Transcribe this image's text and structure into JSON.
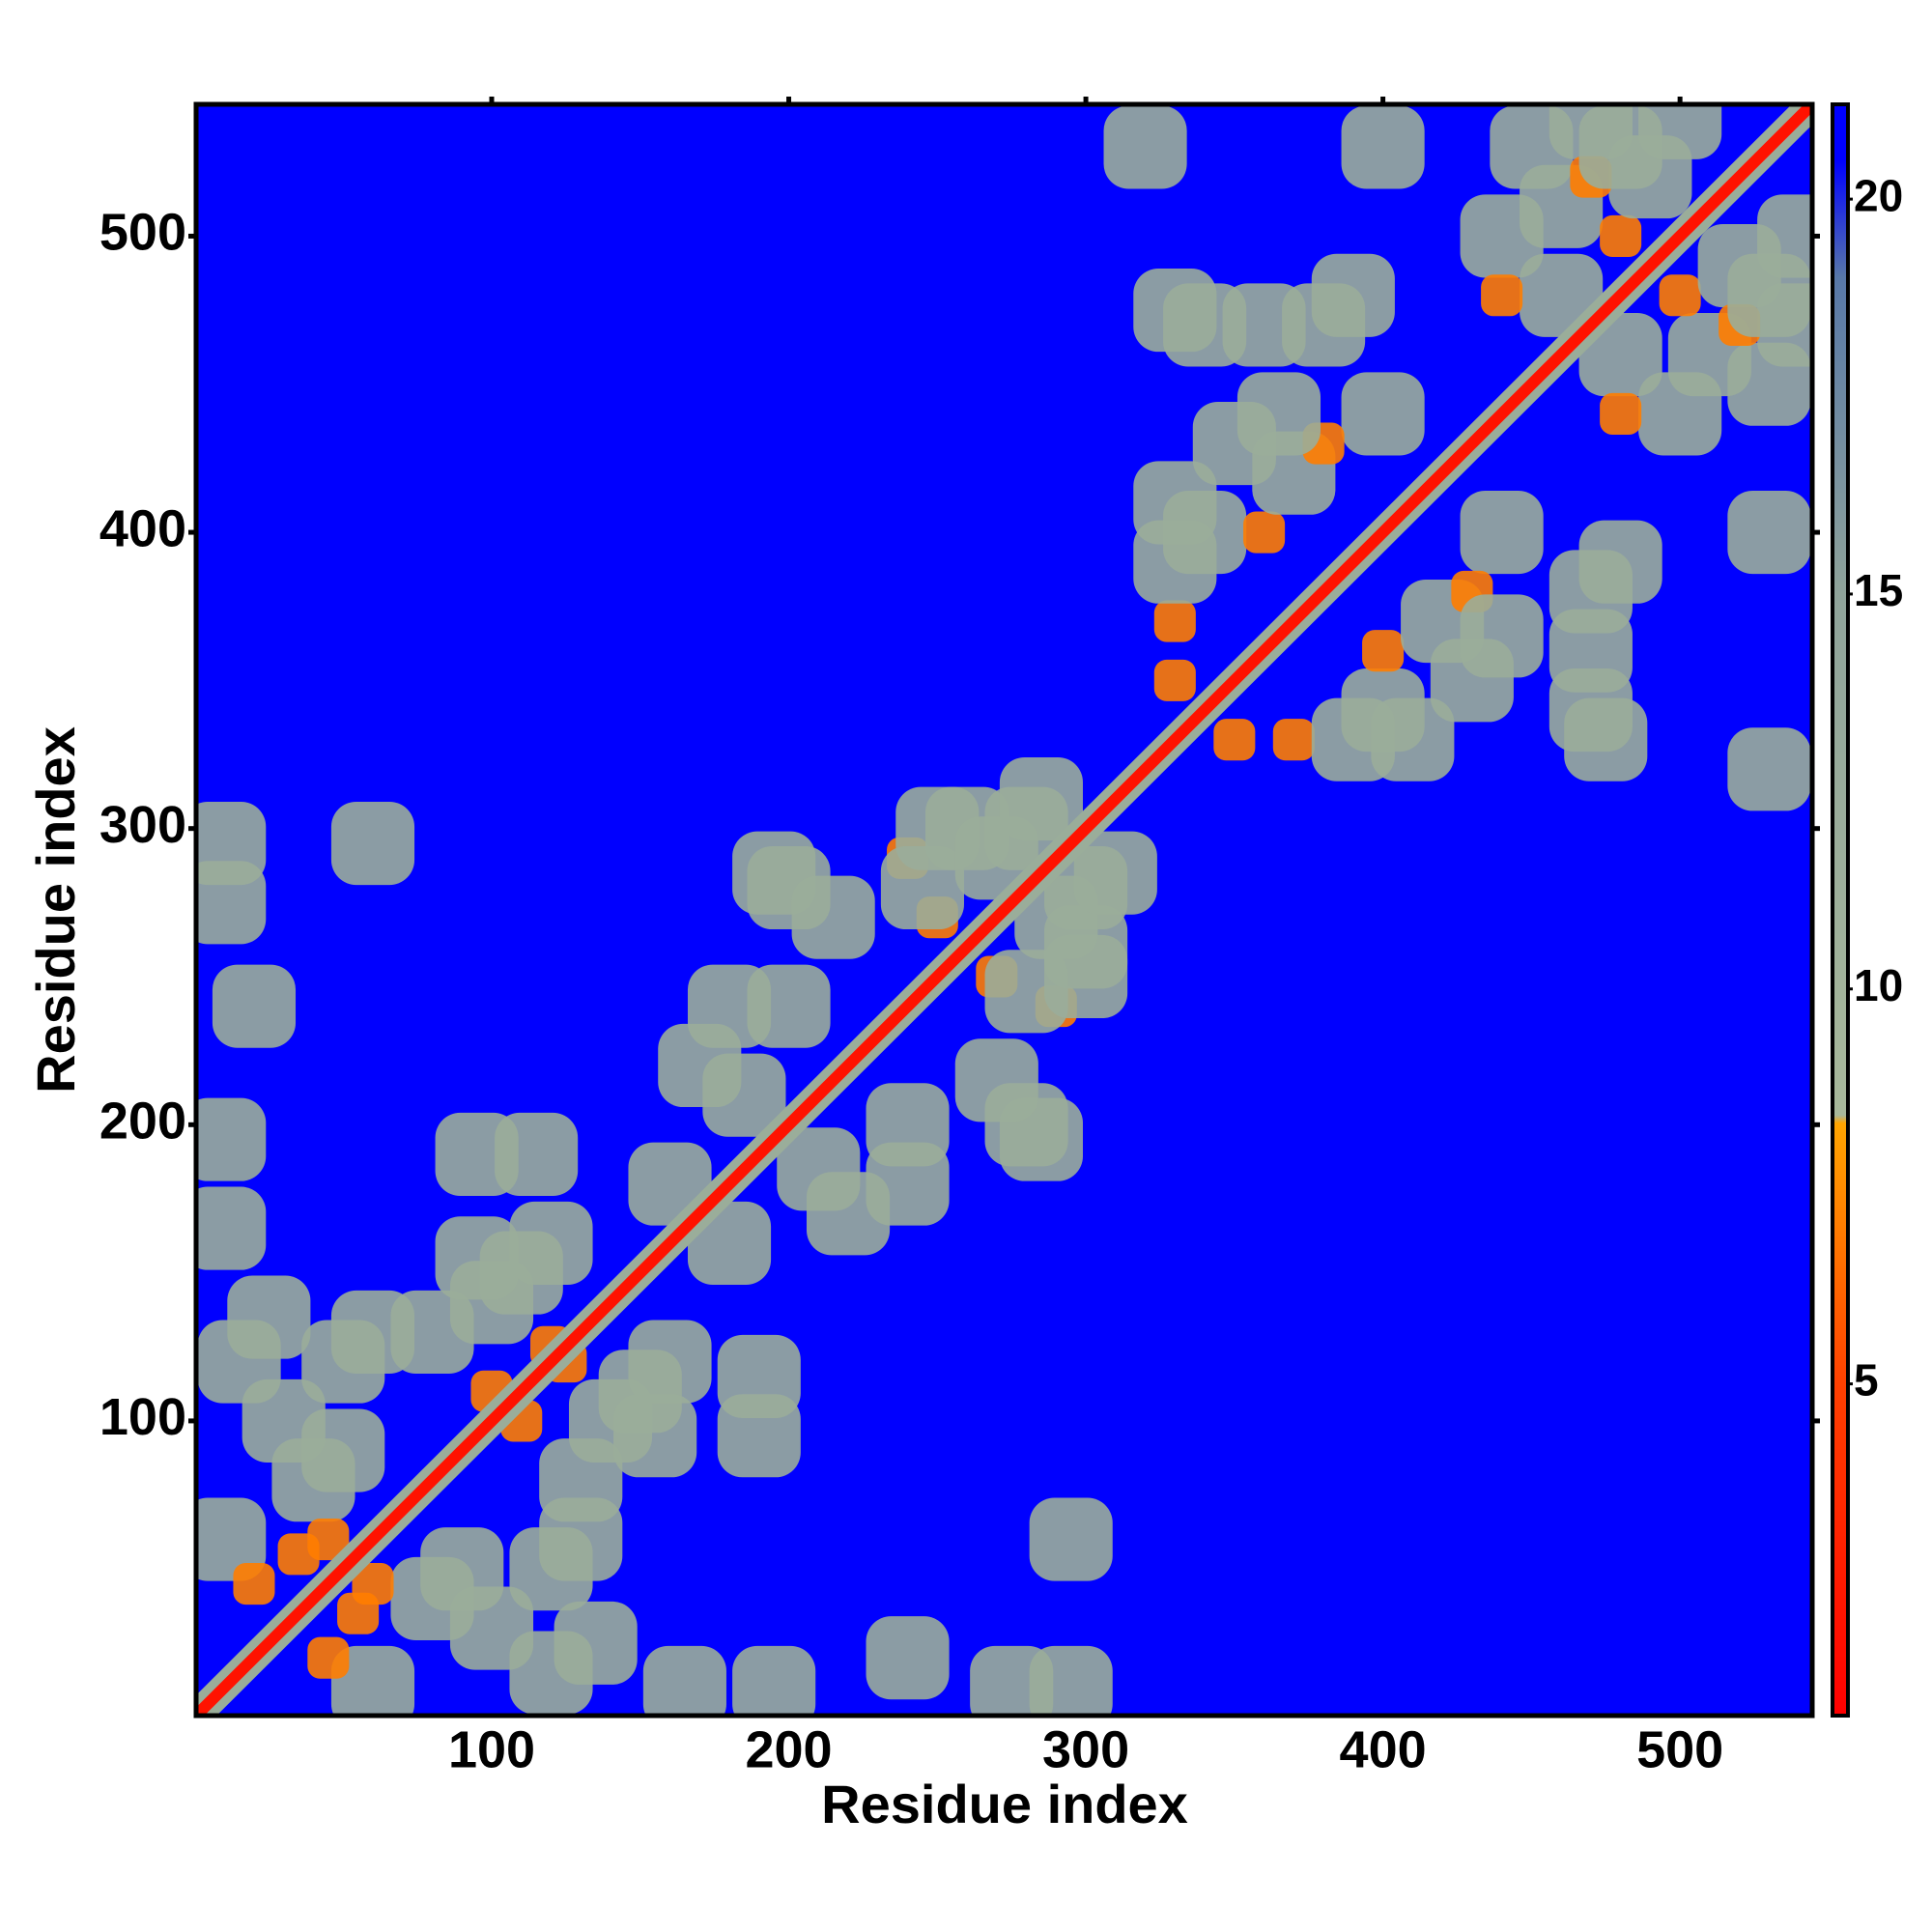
{
  "chart_data": {
    "type": "heatmap",
    "xlabel": "Residue index",
    "ylabel": "Residue index",
    "xlim": [
      0.5,
      544.5
    ],
    "ylim": [
      0.5,
      544.5
    ],
    "xticks": [
      100,
      200,
      300,
      400,
      500
    ],
    "yticks": [
      100,
      200,
      300,
      400,
      500
    ],
    "zlim": [
      0.8,
      21.2
    ],
    "zticks": [
      5,
      10,
      15,
      20
    ],
    "colorscale": [
      [
        0.8,
        "#ff0000"
      ],
      [
        5,
        "#ff4000"
      ],
      [
        8.3,
        "#ffa500"
      ],
      [
        8.4,
        "#a8b89a"
      ],
      [
        15,
        "#8fa39a"
      ],
      [
        19,
        "#5878a8"
      ],
      [
        20.5,
        "#0000ff"
      ],
      [
        21.2,
        "#0000ff"
      ]
    ],
    "background_value": 21,
    "diagonal_value": 2,
    "symmetric": true,
    "x": [
      10,
      20,
      40,
      50,
      15,
      30,
      60,
      25,
      100,
      110,
      120,
      80,
      50,
      35,
      45,
      10,
      60,
      10,
      20,
      10,
      10,
      95,
      115,
      95,
      170,
      185,
      200,
      180,
      200,
      195,
      215,
      240,
      250,
      260,
      280,
      250,
      245,
      330,
      340,
      350,
      360,
      370,
      400,
      330,
      380,
      330,
      365,
      330,
      320,
      340,
      380,
      400,
      330,
      360,
      390,
      440,
      450,
      460,
      470,
      480,
      500,
      460,
      490,
      440,
      100,
      120,
      160,
      270,
      285,
      470,
      480
    ],
    "y": [
      60,
      45,
      80,
      120,
      120,
      100,
      130,
      135,
      140,
      150,
      160,
      130,
      90,
      55,
      60,
      295,
      295,
      275,
      240,
      195,
      165,
      190,
      190,
      155,
      220,
      210,
      240,
      240,
      280,
      285,
      270,
      290,
      270,
      300,
      300,
      300,
      280,
      370,
      400,
      430,
      400,
      420,
      440,
      410,
      430,
      390,
      440,
      350,
      530,
      470,
      470,
      530,
      475,
      470,
      480,
      500,
      530,
      510,
      540,
      500,
      540,
      480,
      520,
      480,
      110,
      125,
      180,
      290,
      310,
      520,
      530
    ],
    "values": [
      12,
      7,
      12,
      12,
      12,
      12,
      12,
      12,
      12,
      12,
      12,
      12,
      12,
      7,
      7,
      12,
      12,
      12,
      12,
      12,
      12,
      12,
      12,
      12,
      12,
      12,
      12,
      12,
      12,
      12,
      12,
      7,
      7,
      12,
      12,
      12,
      12,
      7,
      12,
      12,
      7,
      12,
      12,
      12,
      7,
      12,
      12,
      7,
      12,
      12,
      12,
      12,
      12,
      12,
      12,
      12,
      12,
      12,
      12,
      7,
      12,
      12,
      12,
      7,
      7,
      7,
      12,
      12,
      12,
      7,
      12
    ]
  }
}
